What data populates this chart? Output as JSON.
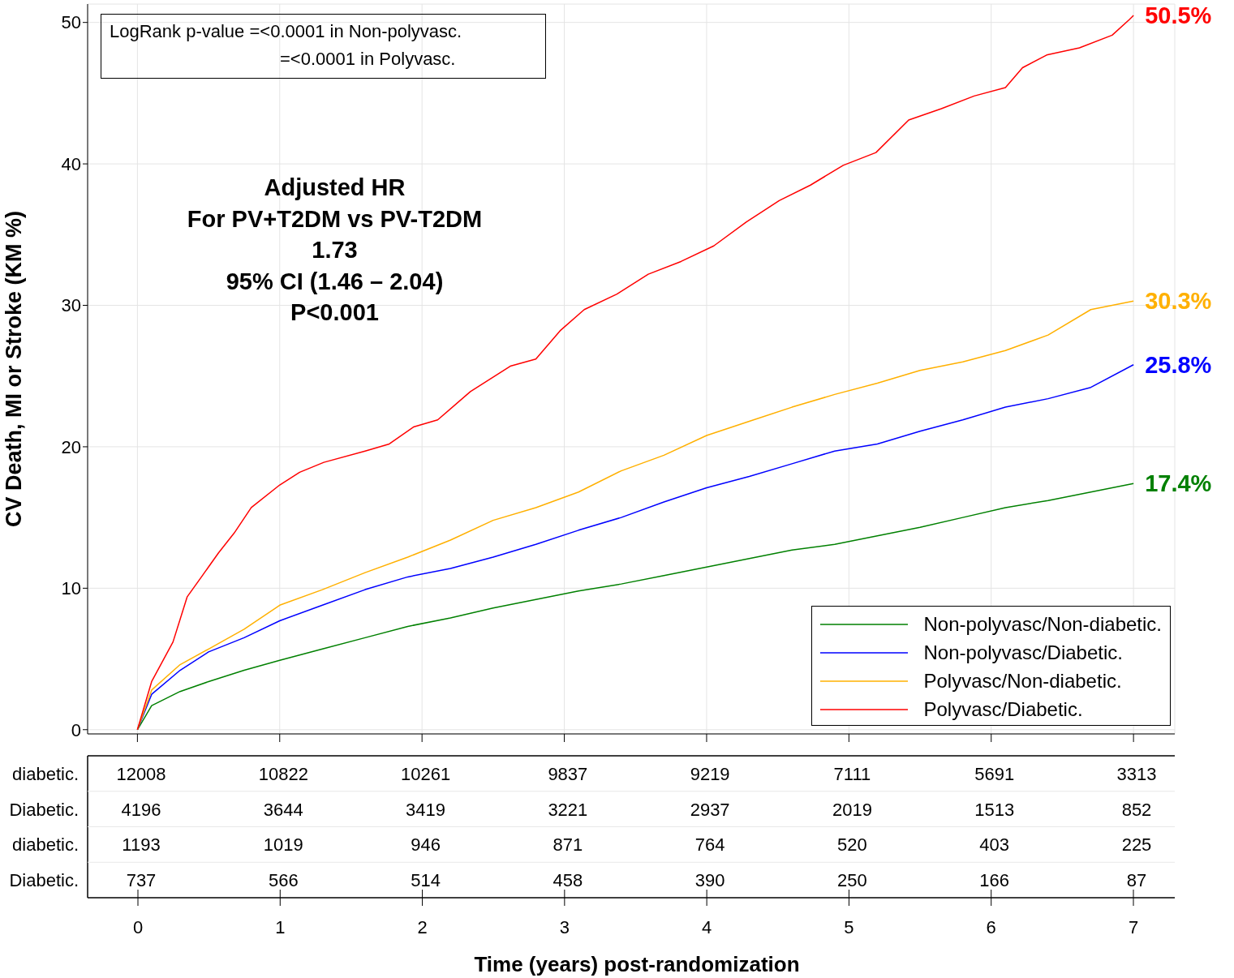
{
  "chart_data": [
    {
      "type": "line",
      "ylabel": "CV Death, MI or Stroke (KM %)",
      "xlim": [
        -0.35,
        7.29
      ],
      "xticks": [
        0,
        1,
        2,
        3,
        4,
        5,
        6,
        7
      ],
      "ylim": [
        -0.3,
        51.3
      ],
      "yticks": [
        0,
        10,
        20,
        30,
        40,
        50
      ],
      "tick_labels": "y",
      "grid": true,
      "legend": "bottom right",
      "marker": "none",
      "line_style": "solid",
      "annotations": [
        "LogRank p-value =<0.0001 in Non-polyvasc.",
        "=<0.0001 in Polyvasc.",
        "Adjusted HR",
        "For PV+T2DM vs PV-T2DM",
        "1.73",
        "95% CI (1.46 – 2.04)",
        "P<0.001"
      ],
      "x": [
        0,
        0.1,
        0.3,
        0.5,
        0.75,
        1.0,
        1.3,
        1.6,
        1.9,
        2.2,
        2.5,
        2.8,
        3.1,
        3.4,
        3.7,
        4.0,
        4.3,
        4.6,
        4.9,
        5.2,
        5.5,
        5.8,
        6.1,
        6.4,
        6.7,
        7.0
      ],
      "series": [
        {
          "name": "Non-polyvasc/Non-diabetic.",
          "color": "#008000",
          "values": [
            0,
            1.7,
            2.7,
            3.4,
            4.2,
            4.9,
            5.7,
            6.5,
            7.3,
            7.9,
            8.6,
            9.2,
            9.8,
            10.3,
            10.9,
            11.5,
            12.1,
            12.7,
            13.1,
            13.7,
            14.3,
            15.0,
            15.7,
            16.2,
            16.8,
            17.4
          ],
          "value_labels": [
            null,
            null,
            null,
            null,
            null,
            null,
            null,
            null,
            null,
            null,
            null,
            null,
            null,
            null,
            null,
            null,
            null,
            null,
            null,
            null,
            null,
            null,
            null,
            null,
            null,
            "17.4%"
          ]
        },
        {
          "name": "Non-polyvasc/Diabetic.",
          "color": "#0000ff",
          "values": [
            0,
            2.5,
            4.2,
            5.5,
            6.5,
            7.7,
            8.8,
            9.9,
            10.8,
            11.4,
            12.2,
            13.1,
            14.1,
            15.0,
            16.1,
            17.1,
            17.9,
            18.8,
            19.7,
            20.2,
            21.1,
            21.9,
            22.8,
            23.4,
            24.2,
            25.8
          ],
          "value_labels": [
            null,
            null,
            null,
            null,
            null,
            null,
            null,
            null,
            null,
            null,
            null,
            null,
            null,
            null,
            null,
            null,
            null,
            null,
            null,
            null,
            null,
            null,
            null,
            null,
            null,
            "25.8%"
          ]
        },
        {
          "name": "Polyvasc/Non-diabetic.",
          "color": "#ffb000",
          "values": [
            0,
            2.8,
            4.6,
            5.7,
            7.1,
            8.8,
            9.9,
            11.1,
            12.2,
            13.4,
            14.8,
            15.7,
            16.8,
            18.3,
            19.4,
            20.8,
            21.8,
            22.8,
            23.7,
            24.5,
            25.4,
            26.0,
            26.8,
            27.9,
            29.7,
            30.3
          ],
          "value_labels": [
            null,
            null,
            null,
            null,
            null,
            null,
            null,
            null,
            null,
            null,
            null,
            null,
            null,
            null,
            null,
            null,
            null,
            null,
            null,
            null,
            null,
            null,
            null,
            null,
            null,
            "30.3%"
          ]
        },
        {
          "name": "Polyvasc/Diabetic.",
          "color": "#ff0000",
          "x": [
            0,
            0.1,
            0.25,
            0.35,
            0.45,
            0.57,
            0.68,
            0.8,
            1.0,
            1.14,
            1.31,
            1.6,
            1.77,
            1.94,
            2.11,
            2.34,
            2.62,
            2.8,
            2.97,
            3.14,
            3.37,
            3.59,
            3.82,
            4.05,
            4.28,
            4.51,
            4.73,
            4.96,
            5.19,
            5.42,
            5.65,
            5.88,
            6.1,
            6.22,
            6.39,
            6.62,
            6.85,
            6.97,
            7.0
          ],
          "values": [
            0,
            3.4,
            6.2,
            9.4,
            10.8,
            12.5,
            13.9,
            15.7,
            17.3,
            18.2,
            18.9,
            19.7,
            20.2,
            21.4,
            21.9,
            23.9,
            25.7,
            26.2,
            28.2,
            29.7,
            30.8,
            32.2,
            33.1,
            34.2,
            35.9,
            37.4,
            38.5,
            39.9,
            40.8,
            43.1,
            43.9,
            44.8,
            45.4,
            46.8,
            47.7,
            48.2,
            49.1,
            50.2,
            50.5
          ],
          "value_labels": [
            null,
            null,
            null,
            null,
            null,
            null,
            null,
            null,
            null,
            null,
            null,
            null,
            null,
            null,
            null,
            null,
            null,
            null,
            null,
            null,
            null,
            null,
            null,
            null,
            null,
            null,
            null,
            null,
            null,
            null,
            null,
            null,
            null,
            null,
            null,
            null,
            null,
            null,
            "50.5%"
          ]
        }
      ]
    },
    {
      "type": "heatmap",
      "xlabel": "Time (years) post-randomization",
      "data_labels": true,
      "categories": [
        "0",
        "1",
        "2",
        "3",
        "4",
        "5",
        "6",
        "7"
      ],
      "y_categories": [
        "diabetic.",
        "Diabetic.",
        "diabetic.",
        "Diabetic."
      ],
      "cells": [
        [
          12008,
          10822,
          10261,
          9837,
          9219,
          7111,
          5691,
          3313
        ],
        [
          4196,
          3644,
          3419,
          3221,
          2937,
          2019,
          1513,
          852
        ],
        [
          1193,
          1019,
          946,
          871,
          764,
          520,
          403,
          225
        ],
        [
          737,
          566,
          514,
          458,
          390,
          250,
          166,
          87
        ]
      ]
    }
  ]
}
